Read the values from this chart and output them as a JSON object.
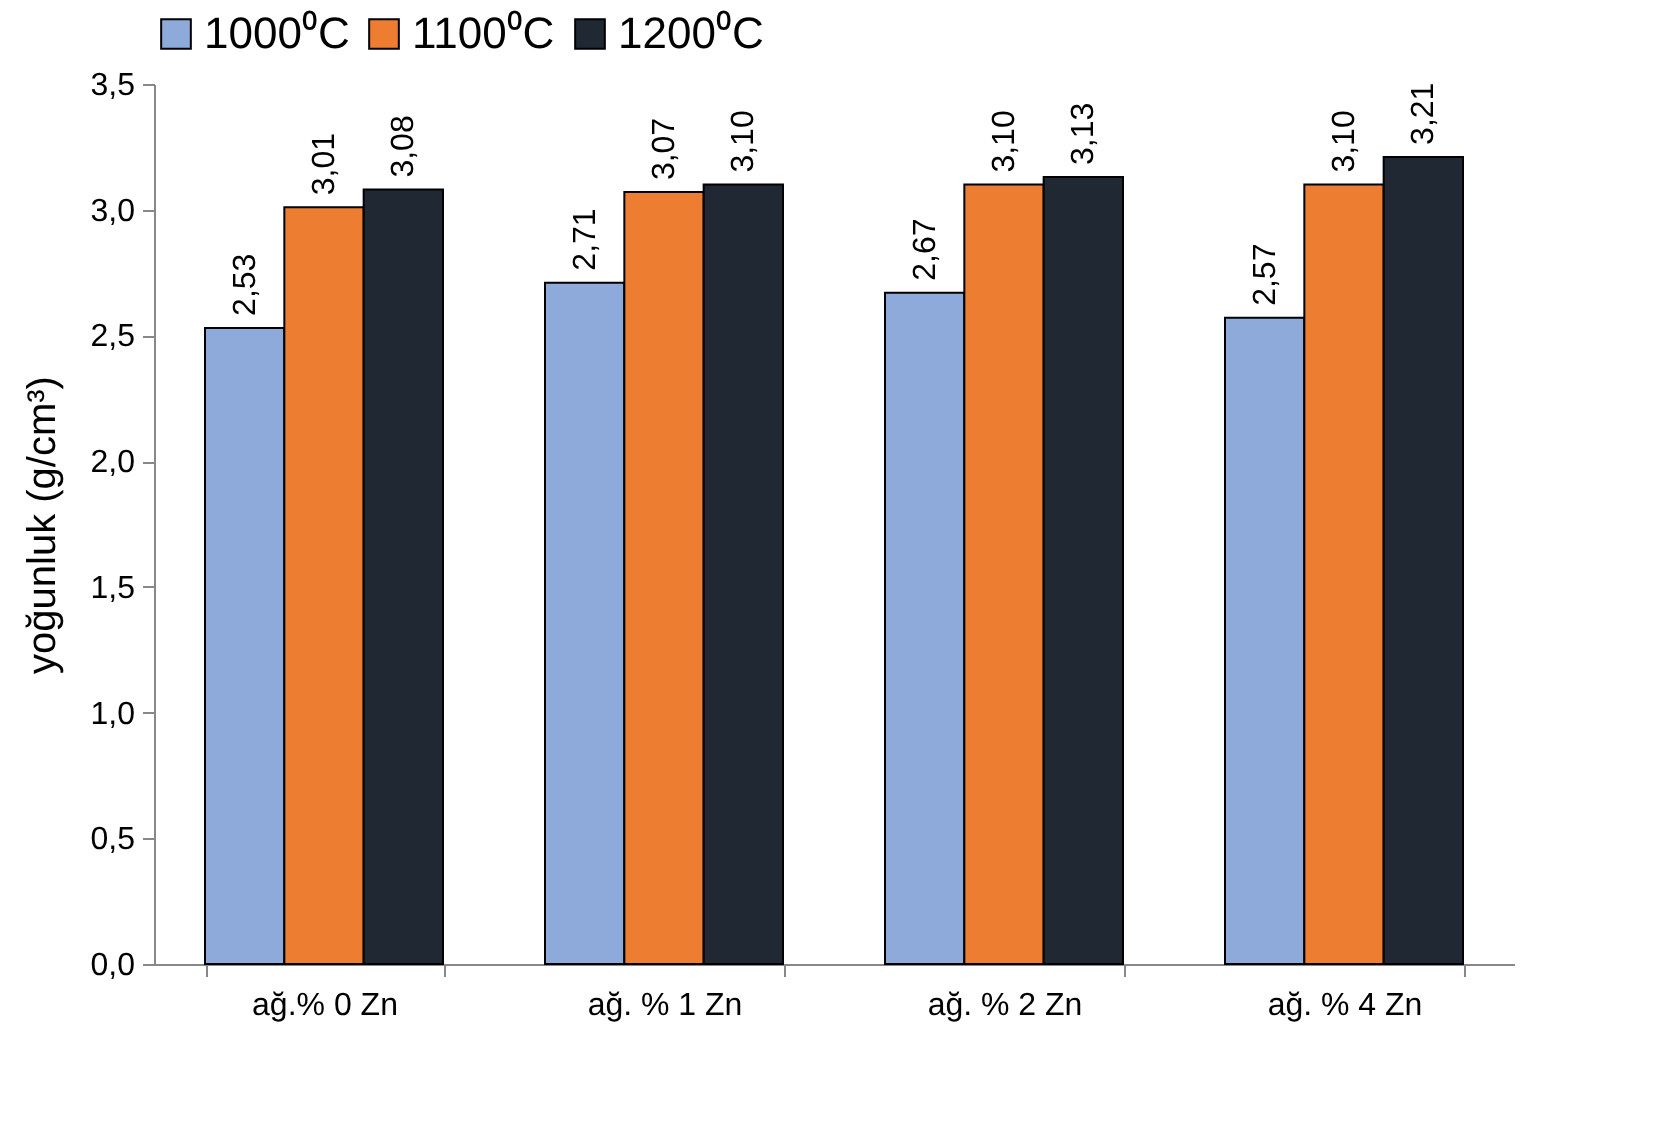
{
  "chart_data": {
    "type": "bar",
    "ylabel": "yoğunluk (g/cm³)",
    "categories": [
      "ağ.% 0 Zn",
      "ağ. % 1 Zn",
      "ağ. % 2 Zn",
      "ağ. % 4 Zn"
    ],
    "series": [
      {
        "name": "1000⁰C",
        "color": "#8eaadb",
        "values": [
          2.53,
          2.71,
          2.67,
          2.57
        ],
        "value_labels": [
          "2,53",
          "2,71",
          "2,67",
          "2,57"
        ]
      },
      {
        "name": "1100⁰C",
        "color": "#ed7d31",
        "values": [
          3.01,
          3.07,
          3.1,
          3.1
        ],
        "value_labels": [
          "3,01",
          "3,07",
          "3,10",
          "3,10"
        ]
      },
      {
        "name": "1200⁰C",
        "color": "#1f2833",
        "values": [
          3.08,
          3.1,
          3.13,
          3.21
        ],
        "value_labels": [
          "3,08",
          "3,10",
          "3,13",
          "3,21"
        ]
      }
    ],
    "ylim": [
      0,
      3.5
    ],
    "yticks": [
      {
        "value": 0,
        "label": "0,0"
      },
      {
        "value": 0.5,
        "label": "0,5"
      },
      {
        "value": 1,
        "label": "1,0"
      },
      {
        "value": 1.5,
        "label": "1,5"
      },
      {
        "value": 2,
        "label": "2,0"
      },
      {
        "value": 2.5,
        "label": "2,5"
      },
      {
        "value": 3,
        "label": "3,0"
      },
      {
        "value": 3.5,
        "label": "3,5"
      }
    ],
    "grid": false,
    "legend": "top"
  }
}
